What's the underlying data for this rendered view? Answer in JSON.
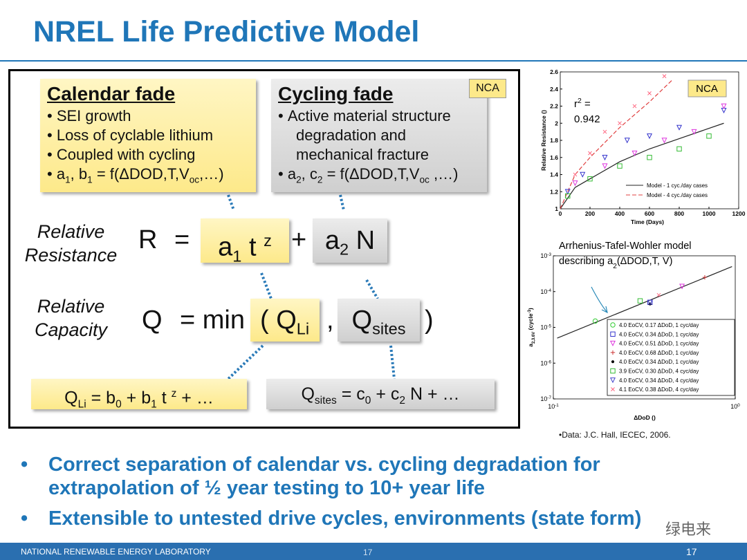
{
  "title": "NREL Life Predictive Model",
  "tag": "NCA",
  "calendar": {
    "heading": "Calendar fade",
    "items": [
      "SEI growth",
      "Loss of cyclable lithium",
      "Coupled with cycling"
    ],
    "formula": [
      "a",
      "1",
      ", b",
      "1",
      " = f(ΔDOD,T,V",
      "oc",
      ",…)"
    ]
  },
  "cycling": {
    "heading": "Cycling fade",
    "items": [
      "Active material structure",
      "degradation and",
      "mechanical fracture"
    ],
    "formula": [
      "a",
      "2",
      ", c",
      "2",
      " = f(ΔDOD,T,V",
      "oc",
      " ,…)"
    ]
  },
  "resistance": {
    "label": [
      "Relative",
      "Resistance"
    ],
    "equation": [
      "R",
      "=",
      "a",
      "1",
      " t ",
      "z",
      "+",
      "a",
      "2",
      " N"
    ]
  },
  "capacity": {
    "label": [
      "Relative",
      "Capacity"
    ],
    "equation": [
      "Q",
      "= min",
      "(",
      "Q",
      "Li",
      ",",
      "Q",
      "sites",
      ")"
    ]
  },
  "q_li": [
    "Q",
    "Li",
    " = b",
    "0",
    " + b",
    "1",
    " t ",
    "z",
    " + …"
  ],
  "q_sites": [
    "Q",
    "sites",
    " = c",
    "0",
    " + c",
    "2",
    " N + …"
  ],
  "chart_data": [
    {
      "type": "scatter",
      "tag": "NCA",
      "annotation": [
        "r",
        "2",
        " ="
      ],
      "r_squared": 0.942,
      "y_label": "Relative Resistance ()",
      "x_label": "Time (Days)",
      "xlim": [
        0,
        1200
      ],
      "xticks": [
        0,
        200,
        400,
        600,
        800,
        1000,
        1200
      ],
      "ylim": [
        1,
        2.6
      ],
      "yticks": [
        1,
        1.2,
        1.4,
        1.6,
        1.8,
        2,
        2.2,
        2.4,
        2.6
      ],
      "series": [
        {
          "name": "Model - 1 cyc./day cases",
          "style": "solid",
          "color": "#222222",
          "x": [
            0,
            100,
            200,
            400,
            600,
            800,
            1100
          ],
          "values": [
            1,
            1.25,
            1.35,
            1.55,
            1.7,
            1.82,
            2.0
          ]
        },
        {
          "name": "Model - 4 cyc./day cases",
          "style": "dashed",
          "color": "#e04040",
          "x": [
            0,
            100,
            200,
            400,
            600,
            750
          ],
          "values": [
            1,
            1.4,
            1.6,
            1.95,
            2.25,
            2.5
          ]
        },
        {
          "style": "x",
          "color": "#ff6680",
          "x": [
            100,
            200,
            300,
            400,
            500,
            600,
            700
          ],
          "values": [
            1.4,
            1.65,
            1.9,
            2.0,
            2.2,
            2.35,
            2.55
          ]
        },
        {
          "style": "triangle-down",
          "color": "#3333cc",
          "x": [
            50,
            150,
            300,
            450,
            600,
            800,
            1100
          ],
          "values": [
            1.2,
            1.4,
            1.6,
            1.8,
            1.85,
            1.95,
            2.15
          ]
        },
        {
          "style": "square",
          "color": "#33bb33",
          "x": [
            50,
            200,
            400,
            600,
            800,
            1000
          ],
          "values": [
            1.15,
            1.35,
            1.5,
            1.6,
            1.7,
            1.85
          ]
        },
        {
          "style": "triangle-down",
          "color": "#dd33dd",
          "x": [
            100,
            300,
            500,
            700,
            900,
            1100
          ],
          "values": [
            1.3,
            1.5,
            1.65,
            1.8,
            1.9,
            2.2
          ]
        }
      ]
    },
    {
      "type": "scatter",
      "log": true,
      "title": [
        "Arrhenius-Tafel-Wohler model",
        "describing a",
        "2",
        "(ΔDOD,T, V)"
      ],
      "y_label": [
        "a",
        "2,3.6V",
        " (cycle",
        "-1",
        ")"
      ],
      "x_label": "ΔDoD ()",
      "xlim": [
        0.1,
        1
      ],
      "xticks": [
        {
          "value": 0.1,
          "label": "10",
          "exponent": "-1"
        },
        {
          "value": 1,
          "label": "10",
          "exponent": "0"
        }
      ],
      "ylim": [
        1e-07,
        0.001
      ],
      "yticks": [
        {
          "value": 1e-07,
          "label": "10",
          "exponent": "-7"
        },
        {
          "value": 1e-06,
          "label": "10",
          "exponent": "-6"
        },
        {
          "value": 1e-05,
          "label": "10",
          "exponent": "-5"
        },
        {
          "value": 0.0001,
          "label": "10",
          "exponent": "-4"
        },
        {
          "value": 0.001,
          "label": "10",
          "exponent": "-3"
        }
      ],
      "series": [
        {
          "style": "line",
          "color": "#222222",
          "x": [
            0.105,
            0.96
          ],
          "values": [
            5e-06,
            0.0005
          ]
        },
        {
          "name": "4.0 EoCV, 0.17 ΔDoD, 1 cyc/day",
          "style": "circle",
          "color": "#33cc33",
          "x": [
            0.17
          ],
          "values": [
            1.5e-05
          ]
        },
        {
          "name": "4.0 EoCV, 0.34 ΔDoD, 1 cyc/day",
          "style": "square",
          "color": "#3333cc",
          "x": [
            0.34
          ],
          "values": [
            5e-05
          ]
        },
        {
          "name": "4.0 EoCV, 0.51 ΔDoD, 1 cyc/day",
          "style": "triangle-down",
          "color": "#dd33dd",
          "x": [
            0.51
          ],
          "values": [
            0.00014
          ]
        },
        {
          "name": "4.0 EoCV, 0.68 ΔDoD, 1 cyc/day",
          "style": "plus",
          "color": "#cc3333",
          "x": [
            0.68
          ],
          "values": [
            0.00025
          ]
        },
        {
          "name": "4.0 EoCV, 0.34 ΔDoD, 1 cyc/day",
          "style": "dot",
          "color": "#000000",
          "x": [
            0.34
          ],
          "values": [
            4.5e-05
          ]
        },
        {
          "name": "3.9 EoCV, 0.30 ΔDoD, 4 cyc/day",
          "style": "square",
          "color": "#33bb33",
          "x": [
            0.3
          ],
          "values": [
            5.5e-05
          ]
        },
        {
          "name": "4.0 EoCV, 0.34 ΔDoD, 4 cyc/day",
          "style": "triangle-down",
          "color": "#4444cc",
          "x": [
            0.34
          ],
          "values": [
            5e-05
          ]
        },
        {
          "name": "4.1 EoCV, 0.38 ΔDoD, 4 cyc/day",
          "style": "x",
          "color": "#ff6680",
          "x": [
            0.38
          ],
          "values": [
            8e-05
          ]
        }
      ]
    }
  ],
  "source": "•Data: J.C. Hall, IECEC, 2006.",
  "bullets": [
    "Correct separation of calendar vs. cycling degradation for extrapolation of ½ year testing to 10+ year life",
    "Extensible to untested drive cycles, environments (state form)"
  ],
  "watermark": "绿电来",
  "footer": {
    "org": "NATIONAL RENEWABLE ENERGY LABORATORY",
    "page_center": "17",
    "page_right": "17"
  }
}
